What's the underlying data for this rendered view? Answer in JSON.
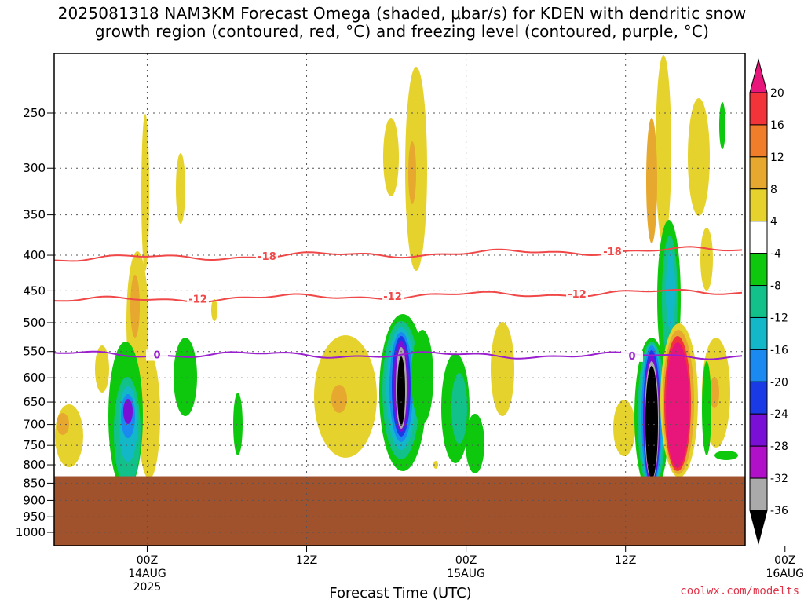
{
  "title_lines": [
    "2025081318 NAM3KM Forecast Omega (shaded, μbar/s) for KDEN with dendritic snow",
    "growth region (contoured, red, °C) and freezing level (contoured, purple, °C)"
  ],
  "credit": "coolwx.com/modelts",
  "colors": {
    "terrain": "#a0522d",
    "dgz_contour": "#f04848",
    "freezing_contour": "#9a1fcf"
  },
  "chart_data": {
    "type": "heatmap",
    "title": "2025081318 NAM3KM Forecast Omega (shaded, μbar/s) for KDEN with dendritic snow growth region (contoured, red, °C) and freezing level (contoured, purple, °C)",
    "xlabel": "Forecast Time (UTC)",
    "ylabel": "",
    "x_range_hours_since_2025-08-13T18Z": [
      -1,
      51
    ],
    "y_range_mb": [
      1000,
      200
    ],
    "y_ticks": [
      250,
      300,
      350,
      400,
      450,
      500,
      550,
      600,
      650,
      700,
      750,
      800,
      850,
      900,
      950,
      1000
    ],
    "x_ticks": [
      {
        "label": "00Z",
        "sub": "14AUG",
        "sub2": "2025",
        "hour": 6
      },
      {
        "label": "12Z",
        "sub": "",
        "sub2": "",
        "hour": 18
      },
      {
        "label": "00Z",
        "sub": "15AUG",
        "sub2": "",
        "hour": 30
      },
      {
        "label": "12Z",
        "sub": "",
        "sub2": "",
        "hour": 42
      },
      {
        "label": "00Z",
        "sub": "16AUG",
        "sub2": "",
        "hour": 54
      }
    ],
    "colorbar": {
      "labels": [
        "20",
        "16",
        "12",
        "8",
        "4",
        "-4",
        "-8",
        "-12",
        "-16",
        "-20",
        "-24",
        "-28",
        "-32",
        "-36"
      ],
      "colors": [
        "#e8167a",
        "#f2343a",
        "#ef7d2a",
        "#e6a82e",
        "#e6d22d",
        "#ffffff",
        "#0ec80e",
        "#12c08a",
        "#12b8c8",
        "#1a8af0",
        "#1a3ae6",
        "#7a10d6",
        "#b010c8",
        "#aaaaaa",
        "#000000"
      ]
    },
    "grid": true,
    "contours": [
      {
        "label": "-18",
        "color": "red",
        "pressure_mb": 405
      },
      {
        "label": "-12",
        "color": "red",
        "pressure_mb": 465
      },
      {
        "label": "0",
        "color": "purple",
        "pressure_mb": 555
      }
    ],
    "terrain_top_mb": 835
  }
}
